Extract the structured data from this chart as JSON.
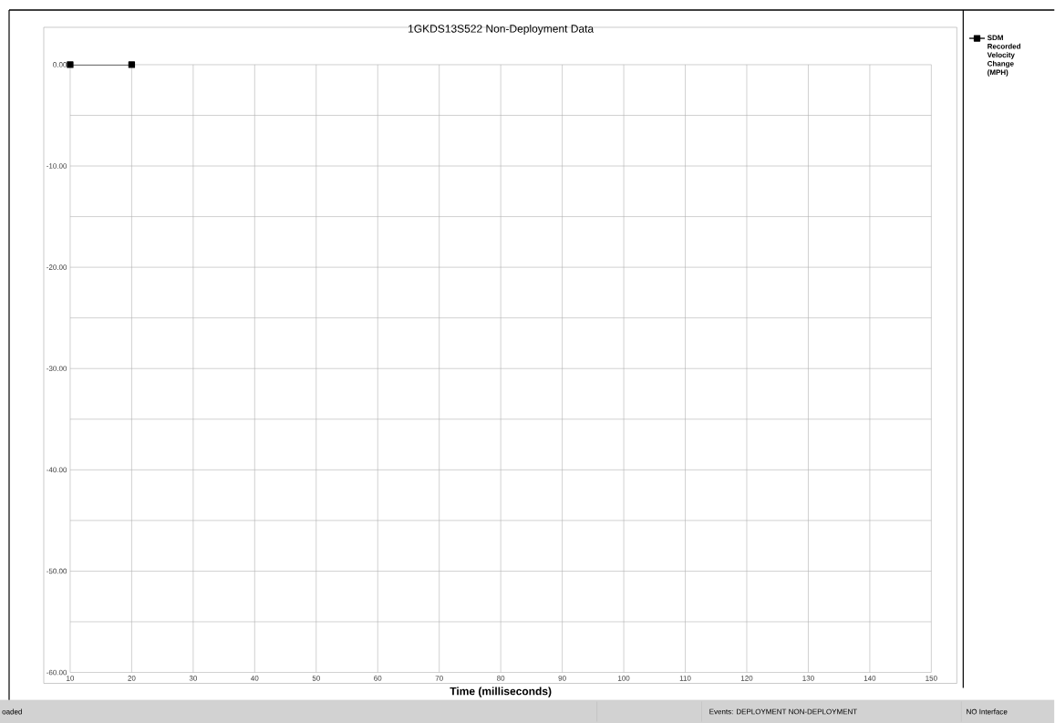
{
  "chart_data": {
    "type": "line",
    "title": "1GKDS13S522 Non-Deployment Data",
    "xlabel": "Time (milliseconds)",
    "x": [
      10,
      20
    ],
    "series": [
      {
        "name": "SDM Recorded Velocity Change (MPH)",
        "color": "#000000",
        "values": [
          0,
          0
        ]
      }
    ],
    "xlim": [
      10,
      150
    ],
    "xticks": [
      10,
      20,
      30,
      40,
      50,
      60,
      70,
      80,
      90,
      100,
      110,
      120,
      130,
      140,
      150
    ],
    "ylim": [
      -60,
      0
    ],
    "yticks": [
      {
        "value": -60,
        "label": "-60.00"
      },
      {
        "value": -55,
        "label": null
      },
      {
        "value": -50,
        "label": "-50.00"
      },
      {
        "value": -45,
        "label": null
      },
      {
        "value": -40,
        "label": "-40.00"
      },
      {
        "value": -35,
        "label": null
      },
      {
        "value": -30,
        "label": "-30.00"
      },
      {
        "value": -25,
        "label": null
      },
      {
        "value": -20,
        "label": "-20.00"
      },
      {
        "value": -15,
        "label": null
      },
      {
        "value": -10,
        "label": "-10.00"
      },
      {
        "value": -5,
        "label": null
      },
      {
        "value": 0,
        "label": "0.00"
      }
    ],
    "grid": true,
    "legend": "right",
    "marker": "square",
    "line_style": "solid",
    "annotations": [
      "oaded",
      "Events: DEPLOYMENT   NON-DEPLOYMENT",
      "NO Interface"
    ]
  }
}
